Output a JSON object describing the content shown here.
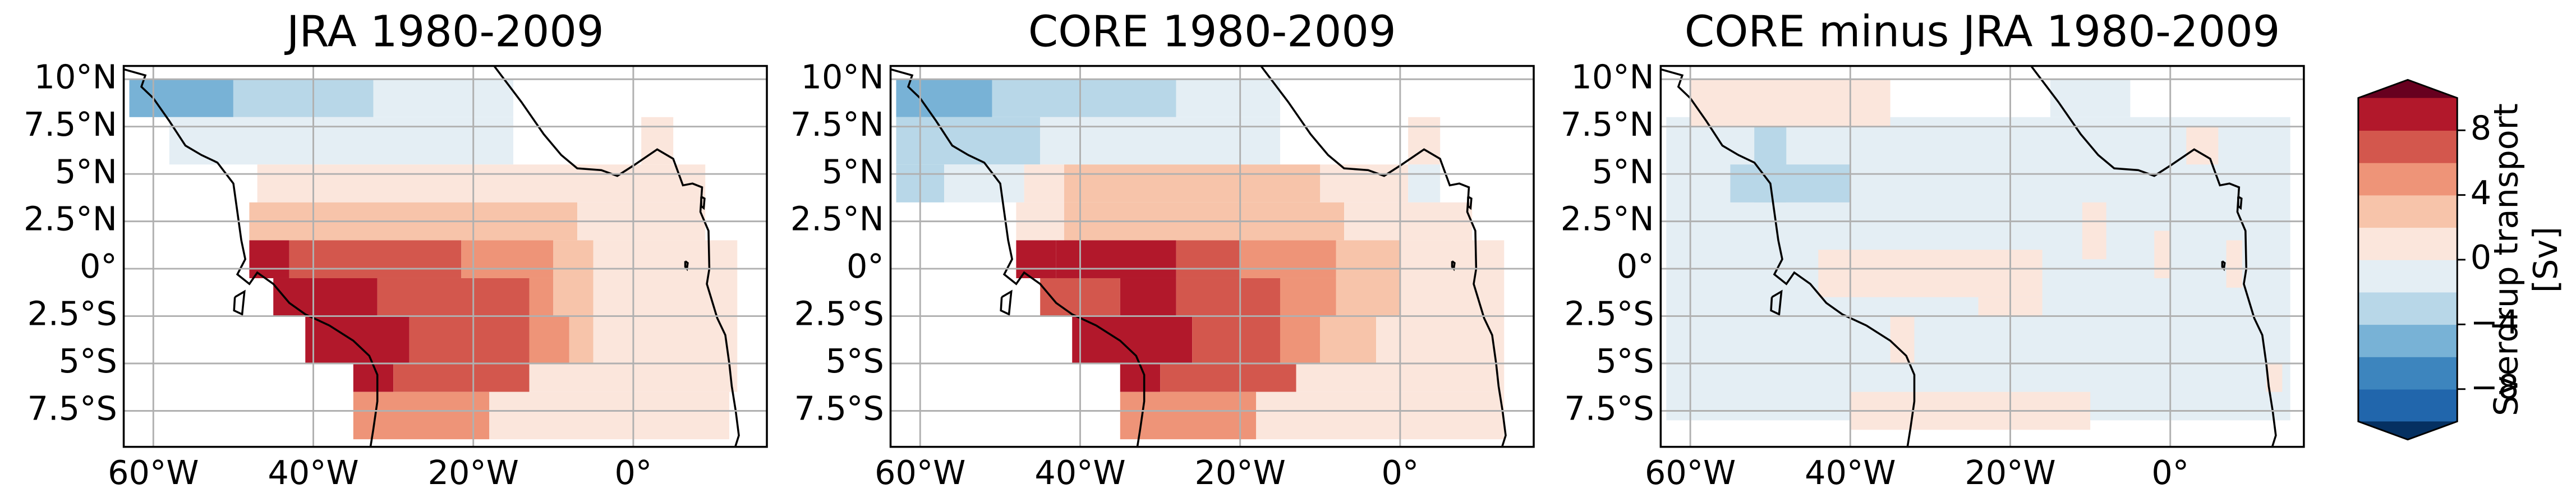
{
  "chart_data": [
    {
      "type": "map",
      "title": "JRA 1980-2009",
      "xlim": [
        -63.7,
        16.7
      ],
      "ylim": [
        -9.4,
        10.7
      ],
      "grid": true,
      "xticks": [
        {
          "value": -60,
          "label": "60°W"
        },
        {
          "value": -40,
          "label": "40°W"
        },
        {
          "value": -20,
          "label": "20°W"
        },
        {
          "value": 0,
          "label": "0°"
        }
      ],
      "yticks": [
        {
          "value": 10,
          "label": "10°N"
        },
        {
          "value": 7.5,
          "label": "7.5°N"
        },
        {
          "value": 5,
          "label": "5°N"
        },
        {
          "value": 2.5,
          "label": "2.5°N"
        },
        {
          "value": 0,
          "label": "0°"
        },
        {
          "value": -2.5,
          "label": "2.5°S"
        },
        {
          "value": -5,
          "label": "5°S"
        },
        {
          "value": -7.5,
          "label": "7.5°S"
        }
      ],
      "cells": [
        {
          "lon": [
            -63,
            -50
          ],
          "lat": [
            8,
            10
          ],
          "value": -5
        },
        {
          "lon": [
            -50,
            -32.5
          ],
          "lat": [
            8,
            10
          ],
          "value": -3
        },
        {
          "lon": [
            -32.5,
            -15
          ],
          "lat": [
            8,
            10
          ],
          "value": -1
        },
        {
          "lon": [
            -58,
            -15
          ],
          "lat": [
            5.5,
            8
          ],
          "value": -1
        },
        {
          "lon": [
            1,
            5
          ],
          "lat": [
            5.5,
            8
          ],
          "value": 1
        },
        {
          "lon": [
            -47,
            9
          ],
          "lat": [
            3.5,
            5.5
          ],
          "value": 1
        },
        {
          "lon": [
            -48,
            -7
          ],
          "lat": [
            1.5,
            3.5
          ],
          "value": 3
        },
        {
          "lon": [
            -7,
            9
          ],
          "lat": [
            1.5,
            3.5
          ],
          "value": 1
        },
        {
          "lon": [
            -48,
            -43
          ],
          "lat": [
            -0.5,
            1.5
          ],
          "value": 9
        },
        {
          "lon": [
            -43,
            -21.5
          ],
          "lat": [
            -0.5,
            1.5
          ],
          "value": 7
        },
        {
          "lon": [
            -21.5,
            -10
          ],
          "lat": [
            -0.5,
            1.5
          ],
          "value": 5
        },
        {
          "lon": [
            -10,
            -5
          ],
          "lat": [
            -0.5,
            1.5
          ],
          "value": 3
        },
        {
          "lon": [
            -5,
            13
          ],
          "lat": [
            -0.5,
            1.5
          ],
          "value": 1
        },
        {
          "lon": [
            -45,
            -32
          ],
          "lat": [
            -2.5,
            -0.5
          ],
          "value": 9
        },
        {
          "lon": [
            -32,
            -13
          ],
          "lat": [
            -2.5,
            -0.5
          ],
          "value": 7
        },
        {
          "lon": [
            -13,
            -10
          ],
          "lat": [
            -2.5,
            -0.5
          ],
          "value": 5
        },
        {
          "lon": [
            -10,
            -5
          ],
          "lat": [
            -2.5,
            -0.5
          ],
          "value": 3
        },
        {
          "lon": [
            -5,
            13
          ],
          "lat": [
            -2.5,
            -0.5
          ],
          "value": 1
        },
        {
          "lon": [
            -41,
            -28
          ],
          "lat": [
            -5,
            -2.5
          ],
          "value": 9
        },
        {
          "lon": [
            -28,
            -13
          ],
          "lat": [
            -5,
            -2.5
          ],
          "value": 7
        },
        {
          "lon": [
            -13,
            -8
          ],
          "lat": [
            -5,
            -2.5
          ],
          "value": 5
        },
        {
          "lon": [
            -8,
            -5
          ],
          "lat": [
            -5,
            -2.5
          ],
          "value": 3
        },
        {
          "lon": [
            -5,
            13
          ],
          "lat": [
            -5,
            -2.5
          ],
          "value": 1
        },
        {
          "lon": [
            -35,
            -30
          ],
          "lat": [
            -6.5,
            -5
          ],
          "value": 9
        },
        {
          "lon": [
            -30,
            -13
          ],
          "lat": [
            -6.5,
            -5
          ],
          "value": 7
        },
        {
          "lon": [
            -13,
            13
          ],
          "lat": [
            -6.5,
            -5
          ],
          "value": 1
        },
        {
          "lon": [
            -35,
            -18
          ],
          "lat": [
            -9,
            -6.5
          ],
          "value": 5
        },
        {
          "lon": [
            -18,
            12
          ],
          "lat": [
            -9,
            -6.5
          ],
          "value": 1
        }
      ]
    },
    {
      "type": "map",
      "title": "CORE 1980-2009",
      "xlim": [
        -63.7,
        16.7
      ],
      "ylim": [
        -9.4,
        10.7
      ],
      "grid": true,
      "xticks": [
        {
          "value": -60,
          "label": "60°W"
        },
        {
          "value": -40,
          "label": "40°W"
        },
        {
          "value": -20,
          "label": "20°W"
        },
        {
          "value": 0,
          "label": "0°"
        }
      ],
      "yticks": [
        {
          "value": 10,
          "label": "10°N"
        },
        {
          "value": 7.5,
          "label": "7.5°N"
        },
        {
          "value": 5,
          "label": "5°N"
        },
        {
          "value": 2.5,
          "label": "2.5°N"
        },
        {
          "value": 0,
          "label": "0°"
        },
        {
          "value": -2.5,
          "label": "2.5°S"
        },
        {
          "value": -5,
          "label": "5°S"
        },
        {
          "value": -7.5,
          "label": "7.5°S"
        }
      ],
      "cells": [
        {
          "lon": [
            -63,
            -51
          ],
          "lat": [
            8,
            10
          ],
          "value": -5
        },
        {
          "lon": [
            -51,
            -28
          ],
          "lat": [
            8,
            10
          ],
          "value": -3
        },
        {
          "lon": [
            -28,
            -15
          ],
          "lat": [
            8,
            10
          ],
          "value": -1
        },
        {
          "lon": [
            -63,
            -45
          ],
          "lat": [
            5.5,
            8
          ],
          "value": -3
        },
        {
          "lon": [
            -45,
            -15
          ],
          "lat": [
            5.5,
            8
          ],
          "value": -1
        },
        {
          "lon": [
            1,
            5
          ],
          "lat": [
            5.5,
            8
          ],
          "value": 1
        },
        {
          "lon": [
            -63,
            -57
          ],
          "lat": [
            3.5,
            5.5
          ],
          "value": -3
        },
        {
          "lon": [
            -57,
            -47
          ],
          "lat": [
            3.5,
            5.5
          ],
          "value": -1
        },
        {
          "lon": [
            -47,
            -42
          ],
          "lat": [
            3.5,
            5.5
          ],
          "value": 1
        },
        {
          "lon": [
            -42,
            -10
          ],
          "lat": [
            3.5,
            5.5
          ],
          "value": 3
        },
        {
          "lon": [
            -10,
            1
          ],
          "lat": [
            3.5,
            5.5
          ],
          "value": 1
        },
        {
          "lon": [
            1,
            5
          ],
          "lat": [
            3.5,
            5.5
          ],
          "value": -1
        },
        {
          "lon": [
            -48,
            -42
          ],
          "lat": [
            1.5,
            3.5
          ],
          "value": 1
        },
        {
          "lon": [
            -42,
            -7
          ],
          "lat": [
            1.5,
            3.5
          ],
          "value": 3
        },
        {
          "lon": [
            -7,
            9
          ],
          "lat": [
            1.5,
            3.5
          ],
          "value": 1
        },
        {
          "lon": [
            -48,
            -43
          ],
          "lat": [
            -0.5,
            1.5
          ],
          "value": 9
        },
        {
          "lon": [
            -43,
            -28
          ],
          "lat": [
            -0.5,
            1.5
          ],
          "value": 9
        },
        {
          "lon": [
            -28,
            -20
          ],
          "lat": [
            -0.5,
            1.5
          ],
          "value": 7
        },
        {
          "lon": [
            -20,
            -8
          ],
          "lat": [
            -0.5,
            1.5
          ],
          "value": 5
        },
        {
          "lon": [
            -8,
            0
          ],
          "lat": [
            -0.5,
            1.5
          ],
          "value": 3
        },
        {
          "lon": [
            0,
            13
          ],
          "lat": [
            -0.5,
            1.5
          ],
          "value": 1
        },
        {
          "lon": [
            -45,
            -35
          ],
          "lat": [
            -2.5,
            -0.5
          ],
          "value": 7
        },
        {
          "lon": [
            -35,
            -28
          ],
          "lat": [
            -2.5,
            -0.5
          ],
          "value": 9
        },
        {
          "lon": [
            -28,
            -15
          ],
          "lat": [
            -2.5,
            -0.5
          ],
          "value": 7
        },
        {
          "lon": [
            -15,
            -8
          ],
          "lat": [
            -2.5,
            -0.5
          ],
          "value": 5
        },
        {
          "lon": [
            -8,
            0
          ],
          "lat": [
            -2.5,
            -0.5
          ],
          "value": 3
        },
        {
          "lon": [
            0,
            13
          ],
          "lat": [
            -2.5,
            -0.5
          ],
          "value": 1
        },
        {
          "lon": [
            -41,
            -26
          ],
          "lat": [
            -5,
            -2.5
          ],
          "value": 9
        },
        {
          "lon": [
            -26,
            -15
          ],
          "lat": [
            -5,
            -2.5
          ],
          "value": 7
        },
        {
          "lon": [
            -15,
            -10
          ],
          "lat": [
            -5,
            -2.5
          ],
          "value": 5
        },
        {
          "lon": [
            -10,
            -3
          ],
          "lat": [
            -5,
            -2.5
          ],
          "value": 3
        },
        {
          "lon": [
            -3,
            13
          ],
          "lat": [
            -5,
            -2.5
          ],
          "value": 1
        },
        {
          "lon": [
            -35,
            -30
          ],
          "lat": [
            -6.5,
            -5
          ],
          "value": 9
        },
        {
          "lon": [
            -30,
            -13
          ],
          "lat": [
            -6.5,
            -5
          ],
          "value": 7
        },
        {
          "lon": [
            -13,
            13
          ],
          "lat": [
            -6.5,
            -5
          ],
          "value": 1
        },
        {
          "lon": [
            -35,
            -18
          ],
          "lat": [
            -9,
            -6.5
          ],
          "value": 5
        },
        {
          "lon": [
            -18,
            13
          ],
          "lat": [
            -9,
            -6.5
          ],
          "value": 1
        }
      ]
    },
    {
      "type": "map",
      "title": "CORE minus JRA 1980-2009",
      "xlim": [
        -63.7,
        16.7
      ],
      "ylim": [
        -9.4,
        10.7
      ],
      "grid": true,
      "xticks": [
        {
          "value": -60,
          "label": "60°W"
        },
        {
          "value": -40,
          "label": "40°W"
        },
        {
          "value": -20,
          "label": "20°W"
        },
        {
          "value": 0,
          "label": "0°"
        }
      ],
      "yticks": [
        {
          "value": 10,
          "label": "10°N"
        },
        {
          "value": 7.5,
          "label": "7.5°N"
        },
        {
          "value": 5,
          "label": "5°N"
        },
        {
          "value": 2.5,
          "label": "2.5°N"
        },
        {
          "value": 0,
          "label": "0°"
        },
        {
          "value": -2.5,
          "label": "2.5°S"
        },
        {
          "value": -5,
          "label": "5°S"
        },
        {
          "value": -7.5,
          "label": "7.5°S"
        }
      ],
      "cells": [
        {
          "lon": [
            -63,
            15
          ],
          "lat": [
            -8,
            8
          ],
          "value": -1
        },
        {
          "lon": [
            -60,
            -35
          ],
          "lat": [
            7.5,
            10
          ],
          "value": 1
        },
        {
          "lon": [
            -15,
            -5
          ],
          "lat": [
            8,
            10
          ],
          "value": -1
        },
        {
          "lon": [
            2,
            6
          ],
          "lat": [
            5.5,
            7.5
          ],
          "value": 1
        },
        {
          "lon": [
            -55,
            -40
          ],
          "lat": [
            3.5,
            5.5
          ],
          "value": -3
        },
        {
          "lon": [
            -52,
            -48
          ],
          "lat": [
            3.5,
            7.5
          ],
          "value": -3
        },
        {
          "lon": [
            -11,
            -8
          ],
          "lat": [
            0.5,
            3.5
          ],
          "value": 1
        },
        {
          "lon": [
            -2,
            0
          ],
          "lat": [
            -0.5,
            2
          ],
          "value": 1
        },
        {
          "lon": [
            -44,
            -16
          ],
          "lat": [
            -1.5,
            1
          ],
          "value": 1
        },
        {
          "lon": [
            -24,
            -16
          ],
          "lat": [
            -2.5,
            -1.5
          ],
          "value": 1
        },
        {
          "lon": [
            -35,
            -32
          ],
          "lat": [
            -5,
            -2.5
          ],
          "value": 1
        },
        {
          "lon": [
            7,
            9
          ],
          "lat": [
            -1,
            1.5
          ],
          "value": 1
        },
        {
          "lon": [
            12,
            14
          ],
          "lat": [
            -6.5,
            -5
          ],
          "value": 1
        },
        {
          "lon": [
            -40,
            -10
          ],
          "lat": [
            -8.5,
            -6.5
          ],
          "value": 1
        }
      ]
    },
    {
      "type": "colorbar",
      "label": [
        "Sverdrup transport",
        "[Sv]"
      ],
      "levels": [
        -10,
        -8,
        -6,
        -4,
        -2,
        0,
        2,
        4,
        6,
        8,
        10
      ],
      "colors": [
        "#2166ac",
        "#3d85be",
        "#78b2d6",
        "#b8d7e8",
        "#e4eef4",
        "#fbe6dc",
        "#f7c4aa",
        "#ee9478",
        "#d3574d",
        "#b2182b"
      ],
      "under_color": "#053061",
      "over_color": "#67001f",
      "ticks": [
        {
          "value": -8,
          "label": "−8"
        },
        {
          "value": -4,
          "label": "−4"
        },
        0,
        4,
        8
      ]
    }
  ]
}
